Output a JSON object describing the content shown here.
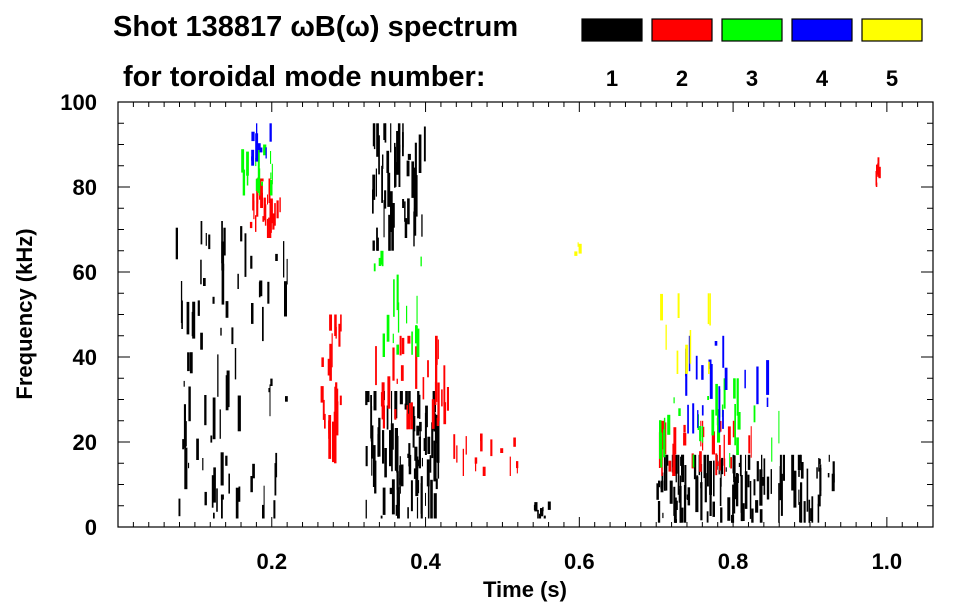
{
  "chart_data": {
    "type": "heatmap",
    "title_line1": "Shot 138817 ωB(ω) spectrum",
    "title_line2": "for toroidal mode number:",
    "xlabel": "Time (s)",
    "ylabel": "Frequency (kHz)",
    "xlim": [
      0.0,
      1.06
    ],
    "ylim": [
      0,
      100
    ],
    "x_ticks": [
      {
        "value": 0.2,
        "label": "0.2"
      },
      {
        "value": 0.4,
        "label": "0.4"
      },
      {
        "value": 0.6,
        "label": "0.6"
      },
      {
        "value": 0.8,
        "label": "0.8"
      },
      {
        "value": 1.0,
        "label": "1.0"
      }
    ],
    "y_ticks": [
      {
        "value": 0,
        "label": "0"
      },
      {
        "value": 20,
        "label": "20"
      },
      {
        "value": 40,
        "label": "40"
      },
      {
        "value": 60,
        "label": "60"
      },
      {
        "value": 80,
        "label": "80"
      },
      {
        "value": 100,
        "label": "100"
      }
    ],
    "x_minor_step": 0.02,
    "y_minor_step": 5,
    "legend": [
      {
        "mode": "1",
        "color": "#000000"
      },
      {
        "mode": "2",
        "color": "#ff0000"
      },
      {
        "mode": "3",
        "color": "#00ff00"
      },
      {
        "mode": "4",
        "color": "#0000ff"
      },
      {
        "mode": "5",
        "color": "#ffff00"
      }
    ],
    "regions": [
      {
        "mode": "1",
        "t": [
          0.075,
          0.22
        ],
        "f": [
          2,
          72
        ],
        "density": 26
      },
      {
        "mode": "1",
        "t": [
          0.33,
          0.4
        ],
        "f": [
          65,
          95
        ],
        "density": 16
      },
      {
        "mode": "1",
        "t": [
          0.32,
          0.42
        ],
        "f": [
          2,
          32
        ],
        "density": 30
      },
      {
        "mode": "1",
        "t": [
          0.7,
          0.93
        ],
        "f": [
          1,
          17
        ],
        "density": 40
      },
      {
        "mode": "1",
        "t": [
          0.54,
          0.56
        ],
        "f": [
          2,
          6
        ],
        "density": 3
      },
      {
        "mode": "2",
        "t": [
          0.17,
          0.21
        ],
        "f": [
          68,
          82
        ],
        "density": 8
      },
      {
        "mode": "2",
        "t": [
          0.26,
          0.29
        ],
        "f": [
          15,
          50
        ],
        "density": 8
      },
      {
        "mode": "2",
        "t": [
          0.33,
          0.43
        ],
        "f": [
          23,
          45
        ],
        "density": 10
      },
      {
        "mode": "2",
        "t": [
          0.43,
          0.52
        ],
        "f": [
          12,
          22
        ],
        "density": 5
      },
      {
        "mode": "2",
        "t": [
          0.7,
          0.83
        ],
        "f": [
          12,
          25
        ],
        "density": 9
      },
      {
        "mode": "2",
        "t": [
          0.985,
          0.99
        ],
        "f": [
          80,
          87
        ],
        "density": 2
      },
      {
        "mode": "3",
        "t": [
          0.16,
          0.2
        ],
        "f": [
          78,
          90
        ],
        "density": 5
      },
      {
        "mode": "3",
        "t": [
          0.33,
          0.4
        ],
        "f": [
          40,
          65
        ],
        "density": 6
      },
      {
        "mode": "3",
        "t": [
          0.7,
          0.87
        ],
        "f": [
          14,
          35
        ],
        "density": 9
      },
      {
        "mode": "4",
        "t": [
          0.17,
          0.2
        ],
        "f": [
          85,
          95
        ],
        "density": 3
      },
      {
        "mode": "4",
        "t": [
          0.72,
          0.85
        ],
        "f": [
          22,
          45
        ],
        "density": 7
      },
      {
        "mode": "5",
        "t": [
          0.58,
          0.6
        ],
        "f": [
          63,
          67
        ],
        "density": 1
      },
      {
        "mode": "5",
        "t": [
          0.7,
          0.78
        ],
        "f": [
          36,
          55
        ],
        "density": 3
      }
    ]
  }
}
